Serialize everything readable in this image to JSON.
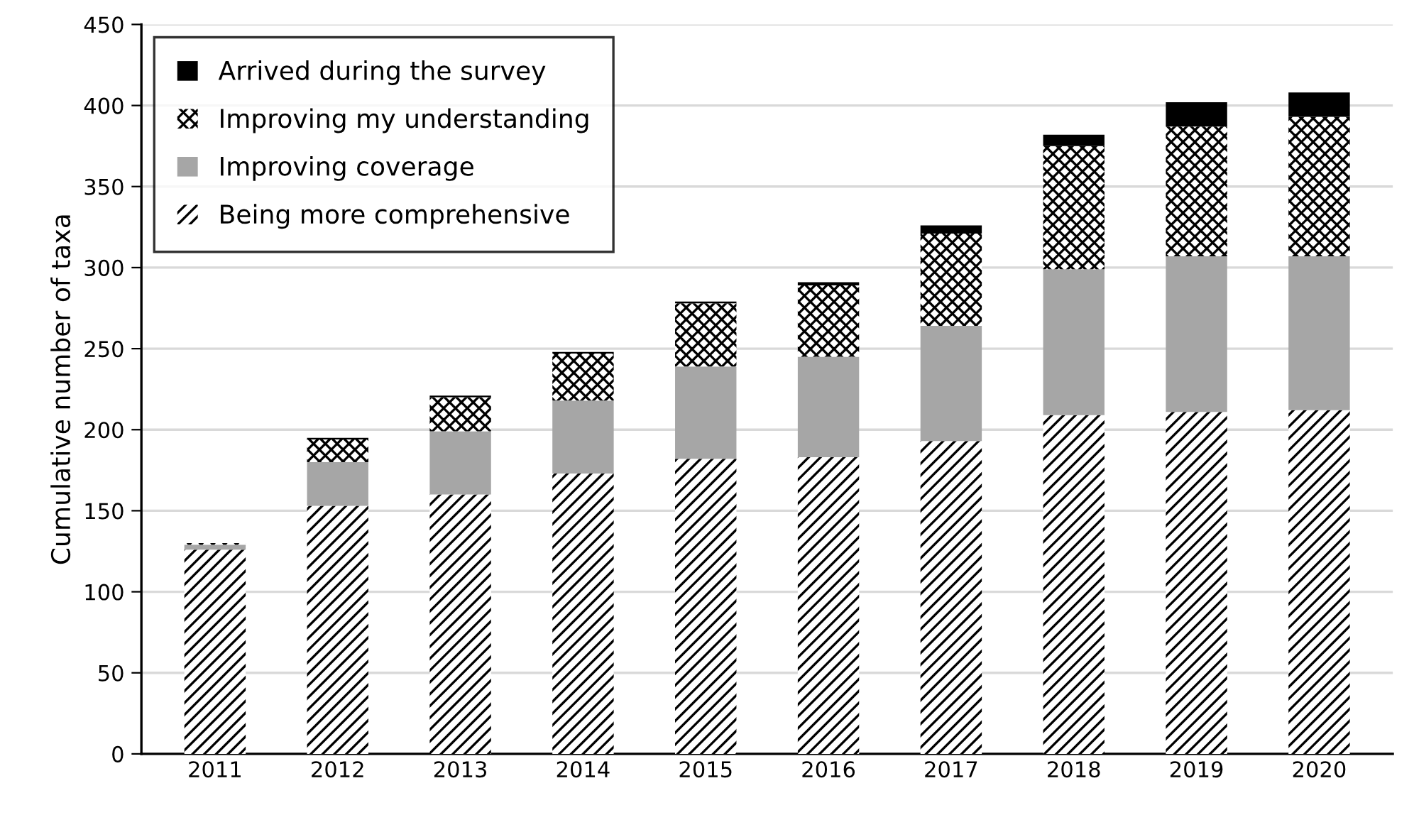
{
  "chart_data": {
    "type": "bar",
    "stacked": true,
    "ylabel": "Cumulative number of taxa",
    "categories": [
      "2011",
      "2012",
      "2013",
      "2014",
      "2015",
      "2016",
      "2017",
      "2018",
      "2019",
      "2020"
    ],
    "series": [
      {
        "name": "Being more comprehensive",
        "color": "#000000",
        "values": [
          126,
          153,
          160,
          173,
          182,
          183,
          193,
          209,
          211,
          212
        ]
      },
      {
        "name": "Improving coverage",
        "color": "#a6a6a6",
        "values": [
          3,
          27,
          39,
          45,
          57,
          62,
          71,
          90,
          96,
          95
        ]
      },
      {
        "name": "Improving my understanding",
        "color": "#000000",
        "values": [
          1,
          14,
          21,
          29,
          39,
          44,
          57,
          76,
          80,
          86
        ]
      },
      {
        "name": "Arrived during the survey",
        "color": "#000000",
        "values": [
          0,
          1,
          1,
          1,
          1,
          2,
          5,
          7,
          15,
          15
        ]
      }
    ],
    "ylim": [
      0,
      450
    ],
    "yticks": [
      0,
      50,
      100,
      150,
      200,
      250,
      300,
      350,
      400,
      450
    ],
    "grid": "y",
    "legend": "top left"
  }
}
